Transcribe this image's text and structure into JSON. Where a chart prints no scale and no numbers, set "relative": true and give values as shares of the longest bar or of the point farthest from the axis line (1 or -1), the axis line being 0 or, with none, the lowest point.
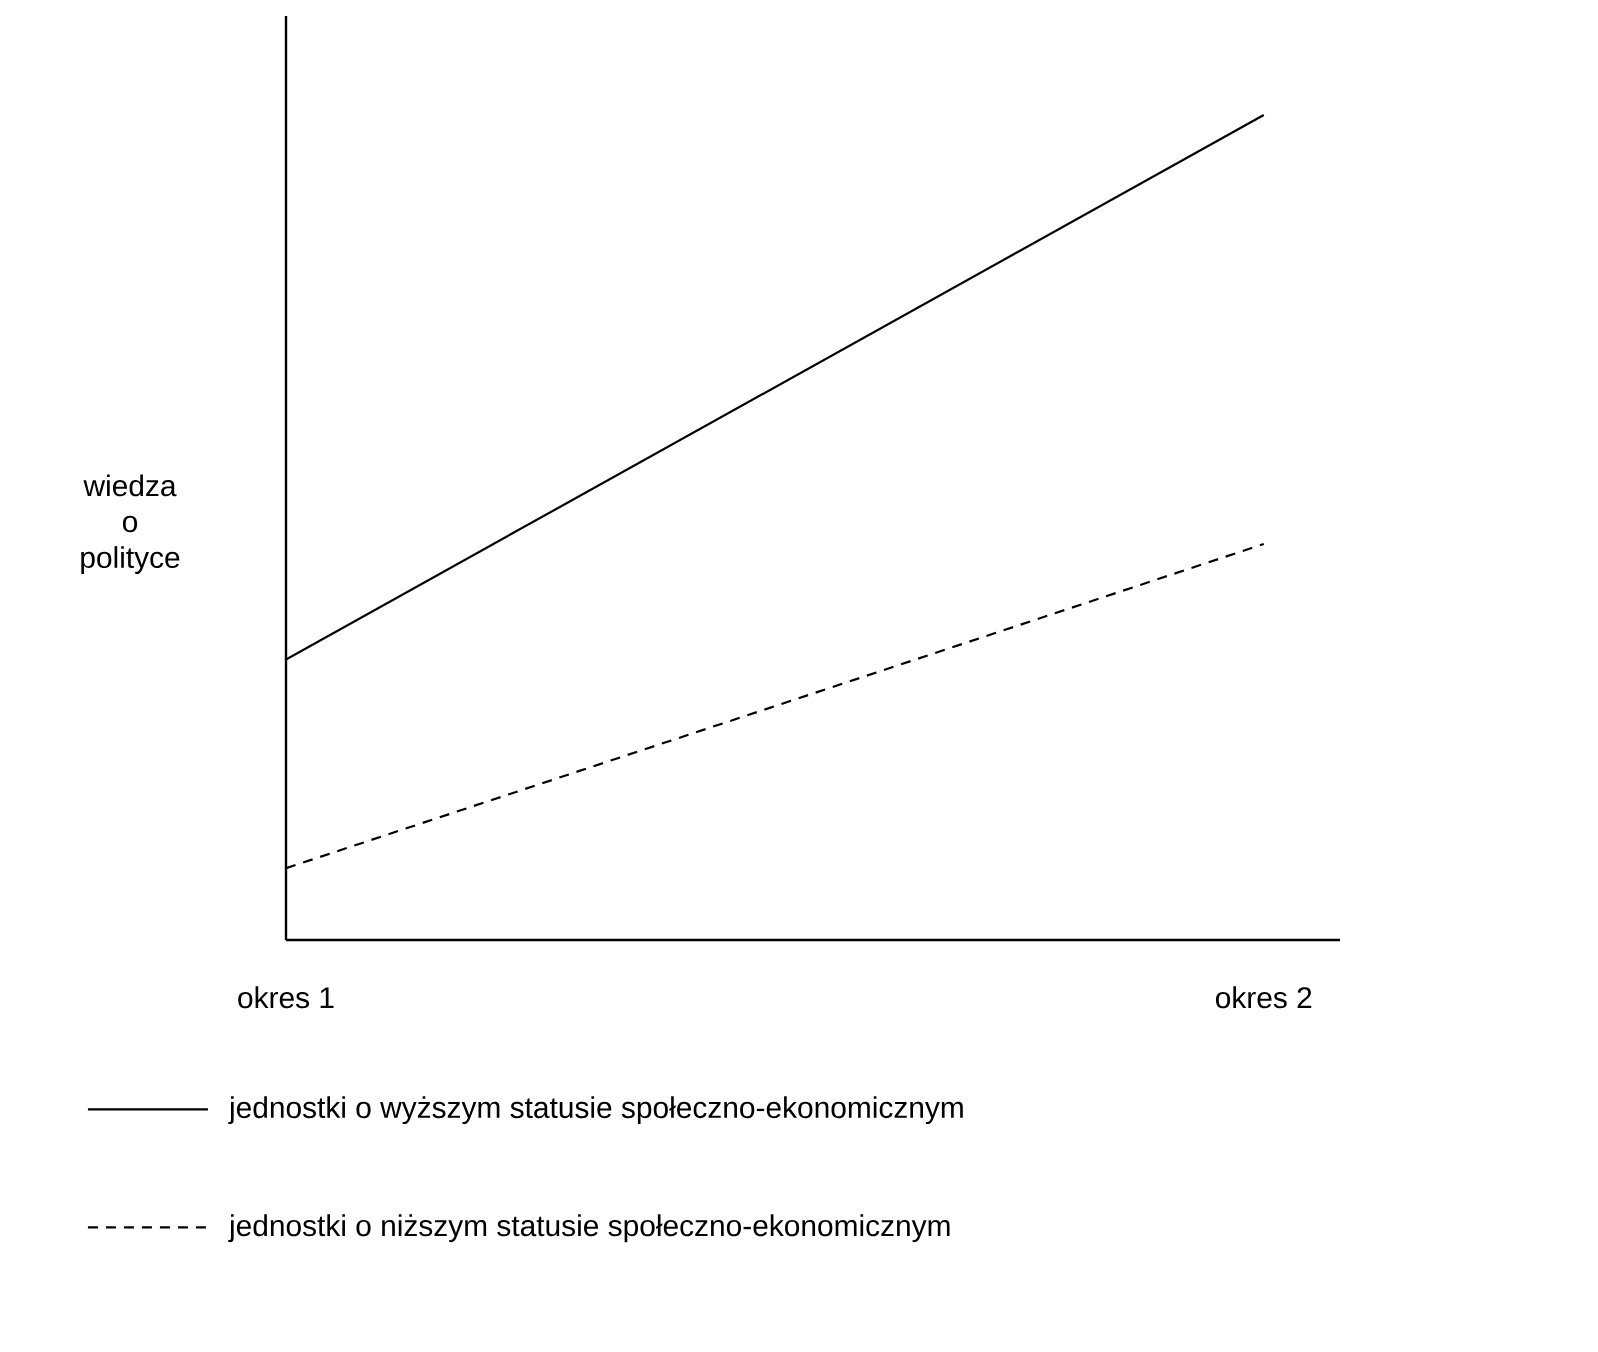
{
  "chart_data": {
    "type": "line",
    "relative": true,
    "ylabel": "wiedza o polityce",
    "categories": [
      "okres 1",
      "okres 2"
    ],
    "series": [
      {
        "name": "jednostki o wyższym statusie społeczno-ekonomicznym",
        "color": "#000000",
        "line_style": "solid",
        "values": [
          0.34,
          1
        ]
      },
      {
        "name": "jednostki o niższym statusie społeczno-ekonomicznym",
        "color": "#000000",
        "line_style": "dashed",
        "values": [
          0.087,
          0.48
        ]
      }
    ],
    "legend": "bottom",
    "marker": "none"
  }
}
